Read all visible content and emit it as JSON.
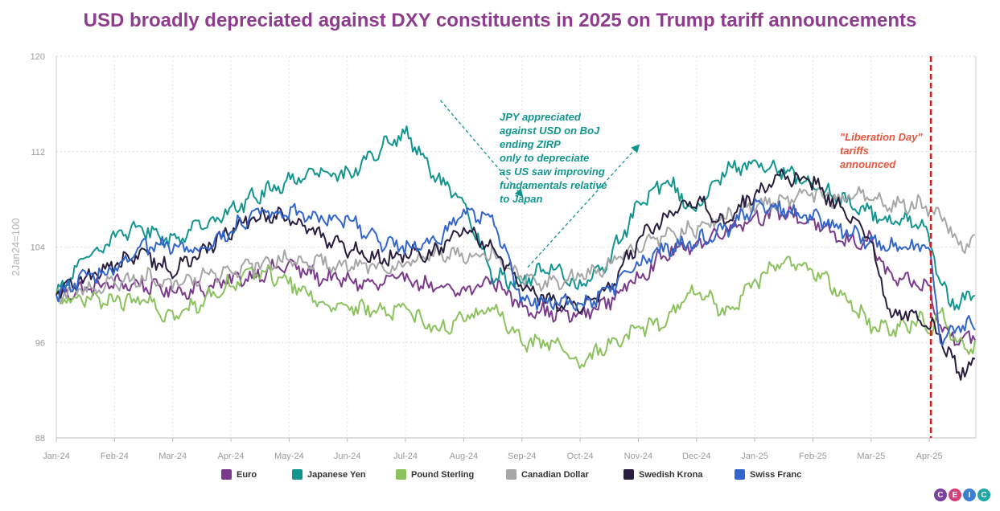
{
  "title": "USD broadly depreciated against DXY constituents in 2025 on Trump tariff announcements",
  "logo": {
    "letters": [
      "C",
      "E",
      "I",
      "C"
    ],
    "colors": [
      "#7b3fa0",
      "#d63e7a",
      "#3c7fd0",
      "#1ea6a6"
    ]
  },
  "chart_data": {
    "type": "line",
    "title": "USD broadly depreciated against DXY constituents in 2025 on Trump tariff announcements",
    "ylabel": "2Jan24=100",
    "xlabel": "",
    "ylim": [
      88,
      120
    ],
    "yticks": [
      88,
      96,
      104,
      112,
      120
    ],
    "x_months": [
      "Jan-24",
      "Feb-24",
      "Mar-24",
      "Apr-24",
      "May-24",
      "Jun-24",
      "Jul-24",
      "Aug-24",
      "Sep-24",
      "Oct-24",
      "Nov-24",
      "Dec-24",
      "Jan-25",
      "Feb-25",
      "Mar-25",
      "Apr-25"
    ],
    "x_end": 15.8,
    "series": [
      {
        "name": "Euro",
        "color": "#7b3b8c",
        "t": [
          0,
          0.5,
          1,
          1.5,
          2,
          2.5,
          3,
          3.5,
          4,
          4.5,
          5,
          5.5,
          6,
          6.5,
          7,
          7.5,
          8,
          8.5,
          9,
          9.5,
          10,
          10.5,
          11,
          11.5,
          12,
          12.5,
          13,
          13.5,
          14,
          14.3,
          14.6,
          14.9,
          15.0,
          15.2,
          15.5,
          15.8
        ],
        "values": [
          100,
          100.5,
          101,
          100.8,
          100.3,
          100.5,
          101.2,
          101.8,
          102.5,
          101.5,
          101.2,
          100.8,
          101.5,
          100.5,
          100.2,
          101.3,
          99,
          98.5,
          98.2,
          99.5,
          101.5,
          103.5,
          104.2,
          105.5,
          106.5,
          107,
          106,
          104.5,
          104.5,
          101.5,
          101,
          100.8,
          100.5,
          97,
          96.5,
          96.5
        ]
      },
      {
        "name": "Japanese Yen",
        "color": "#13958f",
        "t": [
          0,
          0.5,
          1,
          1.5,
          2,
          2.5,
          3,
          3.5,
          4,
          4.5,
          5,
          5.5,
          6,
          6.5,
          7,
          7.5,
          8,
          8.5,
          9,
          9.5,
          10,
          10.5,
          11,
          11.5,
          12,
          12.5,
          13,
          13.5,
          14,
          14.3,
          14.6,
          14.9,
          15.0,
          15.2,
          15.5,
          15.8
        ],
        "values": [
          100,
          103,
          105,
          105.5,
          104.5,
          106,
          107,
          108.5,
          109.5,
          110.5,
          110,
          112,
          113.5,
          110,
          107.5,
          101.5,
          101,
          102.5,
          100.5,
          103,
          107.5,
          109.5,
          107,
          110.5,
          111,
          110.5,
          109,
          108,
          107,
          106,
          106.5,
          106,
          105,
          100.5,
          99,
          100.5
        ]
      },
      {
        "name": "Pound Sterling",
        "color": "#8cc25e",
        "t": [
          0,
          0.5,
          1,
          1.5,
          2,
          2.5,
          3,
          3.5,
          4,
          4.5,
          5,
          5.5,
          6,
          6.5,
          7,
          7.5,
          8,
          8.5,
          9,
          9.5,
          10,
          10.5,
          11,
          11.5,
          12,
          12.5,
          13,
          13.5,
          14,
          14.3,
          14.6,
          14.9,
          15.0,
          15.2,
          15.5,
          15.8
        ],
        "values": [
          100,
          99.5,
          99.5,
          99.5,
          98,
          99.5,
          101,
          102,
          101,
          99.5,
          99,
          98.5,
          99,
          97,
          98,
          99,
          96,
          96,
          94,
          96,
          97,
          98,
          100.5,
          98.5,
          101,
          103,
          102,
          100,
          97.5,
          97,
          97.5,
          97.8,
          97,
          98.5,
          96,
          95.5
        ]
      },
      {
        "name": "Canadian Dollar",
        "color": "#a6a6a6",
        "t": [
          0,
          0.5,
          1,
          1.5,
          2,
          2.5,
          3,
          3.5,
          4,
          4.5,
          5,
          5.5,
          6,
          6.5,
          7,
          7.5,
          8,
          8.5,
          9,
          9.5,
          10,
          10.5,
          11,
          11.5,
          12,
          12.5,
          13,
          13.5,
          14,
          14.3,
          14.6,
          14.9,
          15.0,
          15.2,
          15.5,
          15.8
        ],
        "values": [
          100,
          100.5,
          101,
          101.5,
          101,
          101.5,
          102,
          102.5,
          103,
          102.8,
          102.5,
          102.5,
          102.5,
          103.5,
          103.5,
          103.5,
          101.5,
          101,
          101.5,
          102.5,
          104,
          105,
          105.5,
          106.5,
          107.5,
          108,
          108.5,
          108,
          108.5,
          107.5,
          107.5,
          107.5,
          107,
          107,
          104,
          104.5
        ]
      },
      {
        "name": "Swedish Krona",
        "color": "#2a1e3e",
        "t": [
          0,
          0.5,
          1,
          1.5,
          2,
          2.5,
          3,
          3.5,
          4,
          4.5,
          5,
          5.5,
          6,
          6.5,
          7,
          7.5,
          8,
          8.5,
          9,
          9.5,
          10,
          10.5,
          11,
          11.5,
          12,
          12.5,
          13,
          13.5,
          14,
          14.3,
          14.6,
          14.9,
          15.0,
          15.2,
          15.5,
          15.8
        ],
        "values": [
          100,
          101.5,
          102.5,
          103.5,
          102,
          103.5,
          105.5,
          106.5,
          106.5,
          105,
          104,
          103,
          103.5,
          103.5,
          105.5,
          104,
          100.5,
          99.5,
          99,
          100.5,
          104.5,
          106.5,
          108,
          106,
          108.5,
          110,
          109.5,
          107,
          104.5,
          98.5,
          98.5,
          97.5,
          97.5,
          96.5,
          93.5,
          94.5
        ]
      },
      {
        "name": "Swiss Franc",
        "color": "#3366cc",
        "t": [
          0,
          0.5,
          1,
          1.5,
          2,
          2.5,
          3,
          3.5,
          4,
          4.5,
          5,
          5.5,
          6,
          6.5,
          7,
          7.5,
          8,
          8.5,
          9,
          9.5,
          10,
          10.5,
          11,
          11.5,
          12,
          12.5,
          13,
          13.5,
          14,
          14.3,
          14.6,
          14.9,
          15.0,
          15.2,
          15.5,
          15.8
        ],
        "values": [
          100,
          101.5,
          102,
          104,
          104,
          103.5,
          105.5,
          107,
          107,
          106.5,
          106.5,
          104.5,
          104,
          104.5,
          107,
          106.5,
          99.5,
          99.5,
          99,
          100.5,
          102.5,
          104,
          104.5,
          105.5,
          107.5,
          107,
          106.5,
          105.5,
          104.5,
          104,
          104,
          104,
          104,
          96,
          97.5,
          97.5
        ]
      }
    ],
    "event": {
      "t": 15.0,
      "label_lines": [
        "\"Liberation Day\"",
        "tariffs",
        "announced"
      ],
      "color": "#cc1f1f",
      "text_color": "#e8553e"
    },
    "annotation": {
      "lines": [
        "JPY appreciated",
        "against USD on BoJ",
        "ending ZIRP",
        "only to depreciate",
        "as US saw improving",
        "fundamentals relative",
        "to Japan"
      ],
      "color": "#13958f",
      "arrow1": {
        "from": {
          "t": 6.6,
          "v": 116.3
        },
        "to": {
          "t": 8.0,
          "v": 108.3
        }
      },
      "arrow2": {
        "from": {
          "t": 8.1,
          "v": 102.3
        },
        "to": {
          "t": 10.0,
          "v": 112.5
        }
      }
    }
  }
}
